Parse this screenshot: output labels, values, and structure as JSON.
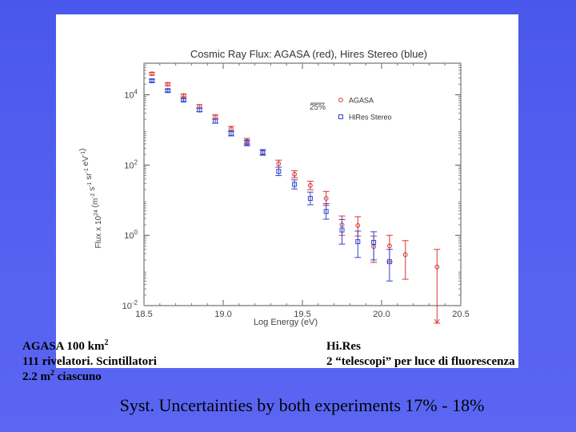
{
  "chart_data": {
    "type": "scatter",
    "title": "Cosmic Ray Flux: AGASA (red), Hires Stereo (blue)",
    "xlabel": "Log Energy (eV)",
    "ylabel": "Flux x 10^24 (m^-2 s^-1 sr^-1 eV^-1)",
    "xlim": [
      18.5,
      20.5
    ],
    "ylim_log10": [
      -2,
      4.9
    ],
    "log_y": true,
    "x_ticks": [
      "18.5",
      "19.0",
      "19.5",
      "20.0",
      "20.5"
    ],
    "y_ticks": [
      "10^-2",
      "10^0",
      "10^2",
      "10^4"
    ],
    "annotation": "25%",
    "series": [
      {
        "name": "AGASA",
        "color": "#dd3333",
        "marker": "circle",
        "x": [
          18.55,
          18.65,
          18.75,
          18.85,
          18.95,
          19.05,
          19.15,
          19.25,
          19.35,
          19.45,
          19.55,
          19.65,
          19.75,
          19.85,
          19.95,
          20.05,
          20.15,
          20.35
        ],
        "y_log10": [
          4.6,
          4.3,
          3.98,
          3.67,
          3.37,
          3.03,
          2.68,
          2.36,
          2.04,
          1.74,
          1.42,
          1.05,
          0.3,
          0.28,
          -0.32,
          -0.3,
          -0.55,
          -0.9
        ],
        "err_low_log10": [
          0.04,
          0.04,
          0.04,
          0.05,
          0.06,
          0.07,
          0.08,
          0.08,
          0.1,
          0.1,
          0.12,
          0.2,
          0.3,
          0.3,
          0.45,
          0.45,
          0.7,
          1.6
        ],
        "err_high_log10": [
          0.04,
          0.04,
          0.04,
          0.05,
          0.06,
          0.07,
          0.08,
          0.08,
          0.1,
          0.1,
          0.12,
          0.2,
          0.25,
          0.25,
          0.3,
          0.3,
          0.4,
          0.5
        ],
        "upper_limit": [
          false,
          false,
          false,
          false,
          false,
          false,
          false,
          false,
          false,
          false,
          false,
          false,
          false,
          false,
          false,
          false,
          false,
          true
        ]
      },
      {
        "name": "HiRes Stereo",
        "color": "#3344cc",
        "marker": "square",
        "x": [
          18.55,
          18.65,
          18.75,
          18.85,
          18.95,
          19.05,
          19.15,
          19.25,
          19.35,
          19.45,
          19.55,
          19.65,
          19.75,
          19.85,
          19.95,
          20.05
        ],
        "y_log10": [
          4.4,
          4.12,
          3.85,
          3.57,
          3.25,
          2.9,
          2.63,
          2.36,
          1.82,
          1.45,
          1.05,
          0.68,
          0.15,
          -0.18,
          -0.2,
          -0.75
        ],
        "err_low_log10": [
          0.04,
          0.04,
          0.04,
          0.05,
          0.06,
          0.07,
          0.08,
          0.08,
          0.12,
          0.13,
          0.18,
          0.22,
          0.4,
          0.45,
          0.5,
          0.55
        ],
        "err_high_log10": [
          0.04,
          0.04,
          0.04,
          0.05,
          0.06,
          0.07,
          0.08,
          0.08,
          0.12,
          0.13,
          0.18,
          0.22,
          0.3,
          0.3,
          0.3,
          0.35
        ]
      }
    ]
  },
  "captions": {
    "left_line1": "AGASA 100 km",
    "left_line1_sup": "2",
    "left_line2": "111 rivelatori. Scintillatori",
    "left_line3": "2.2 m",
    "left_line3_sup": "2",
    "left_line3_rest": " ciascuno",
    "right_line1": "Hi.Res",
    "right_line2": "2 “telescopi” per luce di fluorescenza"
  },
  "footer": "Syst. Uncertainties by both experiments 17% - 18%"
}
